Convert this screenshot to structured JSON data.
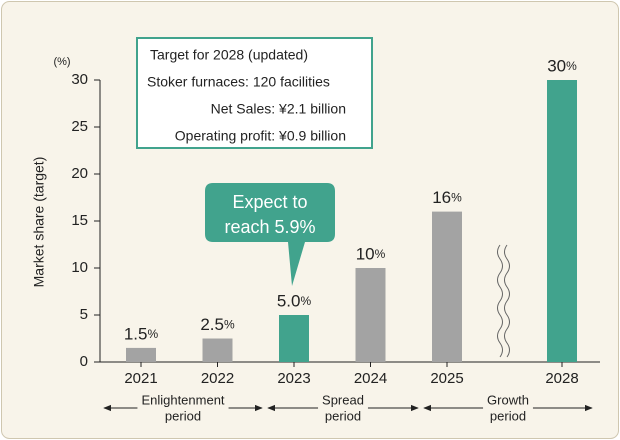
{
  "chart_data": {
    "type": "bar",
    "y_axis_label": "Market share (target)",
    "y_unit": "(%)",
    "categories": [
      "2021",
      "2022",
      "2023",
      "2024",
      "2025",
      "2028"
    ],
    "values": [
      1.5,
      2.5,
      5.0,
      10,
      16,
      30
    ],
    "value_labels": [
      "1.5%",
      "2.5%",
      "5.0%",
      "10%",
      "16%",
      "30%"
    ],
    "colors": [
      "#a3a3a3",
      "#a3a3a3",
      "#41a38d",
      "#a3a3a3",
      "#a3a3a3",
      "#41a38d"
    ],
    "ylim": [
      0,
      30
    ],
    "yticks": [
      0,
      5,
      10,
      15,
      20,
      25,
      30
    ],
    "info_box": [
      "Target for 2028 (updated)",
      "Stoker furnaces: 120 facilities",
      "Net Sales: ¥2.1 billion",
      "Operating profit: ¥0.9 billion"
    ],
    "callout": [
      "Expect to",
      "reach 5.9%"
    ],
    "periods": [
      {
        "lines": [
          "Enlightenment",
          "period"
        ]
      },
      {
        "lines": [
          "Spread",
          "period"
        ]
      },
      {
        "lines": [
          "Growth",
          "period"
        ]
      }
    ]
  }
}
